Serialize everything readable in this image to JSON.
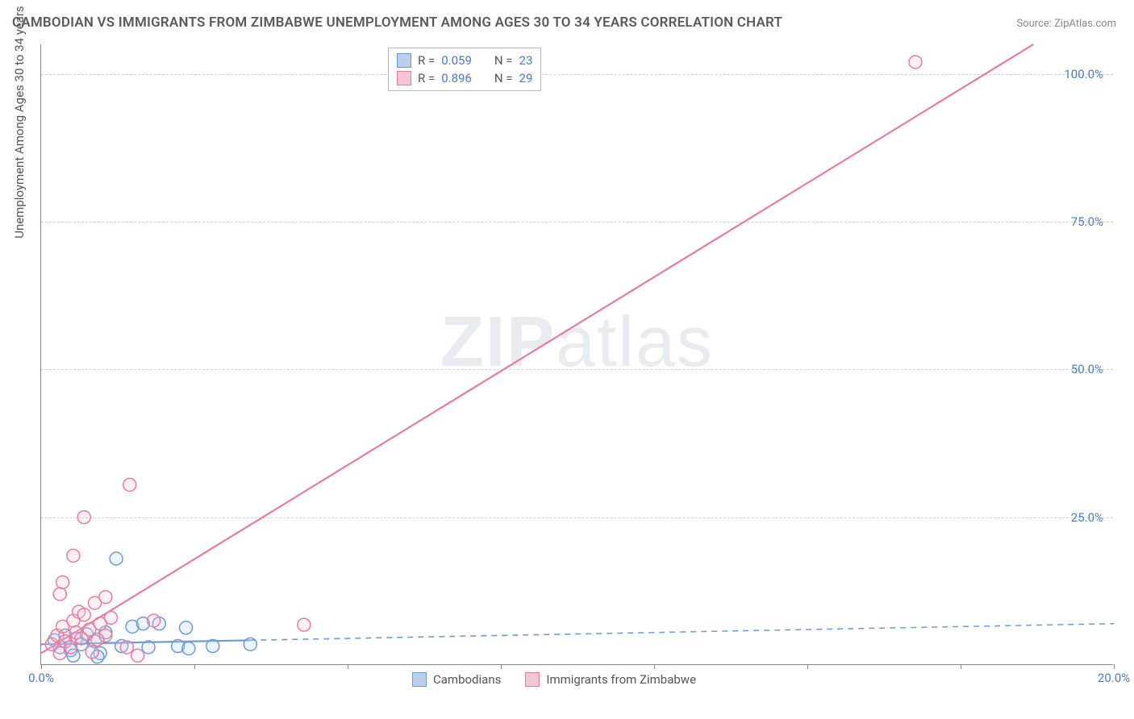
{
  "title": "CAMBODIAN VS IMMIGRANTS FROM ZIMBABWE UNEMPLOYMENT AMONG AGES 30 TO 34 YEARS CORRELATION CHART",
  "source": "Source: ZipAtlas.com",
  "y_axis_title": "Unemployment Among Ages 30 to 34 years",
  "watermark": {
    "bold": "ZIP",
    "rest": "atlas"
  },
  "chart": {
    "type": "scatter",
    "background_color": "#ffffff",
    "grid_color": "#d0d0d0",
    "axis_color": "#888888",
    "tick_label_color": "#4a7bc8",
    "tick_fontsize": 15,
    "title_fontsize": 17,
    "xlim": [
      0,
      20
    ],
    "ylim": [
      0,
      105
    ],
    "x_ticks": [
      0,
      2.86,
      5.71,
      8.57,
      11.43,
      14.29,
      17.14,
      20
    ],
    "x_tick_labels": [
      "0.0%",
      "",
      "",
      "",
      "",
      "",
      "",
      "20.0%"
    ],
    "y_ticks": [
      25,
      50,
      75,
      100
    ],
    "y_tick_labels": [
      "25.0%",
      "50.0%",
      "75.0%",
      "100.0%"
    ],
    "marker_radius": 8,
    "marker_stroke_width": 1.5,
    "marker_fill_opacity": 0.25,
    "series": [
      {
        "name": "Cambodians",
        "color": "#6b9bd8",
        "fill": "#b8d0ec",
        "R": "0.059",
        "N": "23",
        "trend": {
          "x1": 0,
          "y1": 3.5,
          "x2": 20,
          "y2": 7.0,
          "solid_until_x": 3.9,
          "line_width": 2.2
        },
        "points": [
          [
            0.25,
            4.2
          ],
          [
            0.35,
            3.0
          ],
          [
            0.45,
            5.0
          ],
          [
            0.55,
            2.5
          ],
          [
            0.65,
            4.5
          ],
          [
            0.75,
            3.5
          ],
          [
            0.85,
            5.2
          ],
          [
            0.6,
            1.6
          ],
          [
            1.0,
            4.0
          ],
          [
            1.1,
            2.0
          ],
          [
            1.2,
            5.5
          ],
          [
            1.4,
            18.0
          ],
          [
            1.5,
            3.2
          ],
          [
            1.7,
            6.5
          ],
          [
            1.9,
            7.0
          ],
          [
            2.0,
            3.0
          ],
          [
            2.2,
            7.0
          ],
          [
            2.55,
            3.2
          ],
          [
            2.75,
            2.8
          ],
          [
            2.7,
            6.3
          ],
          [
            3.2,
            3.2
          ],
          [
            3.9,
            3.5
          ],
          [
            1.05,
            1.4
          ]
        ]
      },
      {
        "name": "Immigrants from Zimbabwe",
        "color": "#e87ca0",
        "fill": "#f5c5d5",
        "R": "0.896",
        "N": "29",
        "trend": {
          "x1": 0,
          "y1": 2.0,
          "x2": 18.5,
          "y2": 105,
          "solid_until_x": 18.5,
          "line_width": 2.2
        },
        "points": [
          [
            0.2,
            3.5
          ],
          [
            0.3,
            5.0
          ],
          [
            0.35,
            2.0
          ],
          [
            0.4,
            6.5
          ],
          [
            0.45,
            4.0
          ],
          [
            0.35,
            12.0
          ],
          [
            0.4,
            14.0
          ],
          [
            0.55,
            3.0
          ],
          [
            0.6,
            7.5
          ],
          [
            0.65,
            5.5
          ],
          [
            0.7,
            9.0
          ],
          [
            0.75,
            4.5
          ],
          [
            0.8,
            8.5
          ],
          [
            0.6,
            18.5
          ],
          [
            0.9,
            6.0
          ],
          [
            0.8,
            25.0
          ],
          [
            1.0,
            10.5
          ],
          [
            1.1,
            7.0
          ],
          [
            1.2,
            5.0
          ],
          [
            1.2,
            11.5
          ],
          [
            1.3,
            8.0
          ],
          [
            1.65,
            30.5
          ],
          [
            0.95,
            2.2
          ],
          [
            1.6,
            3.0
          ],
          [
            1.8,
            1.6
          ],
          [
            2.1,
            7.5
          ],
          [
            4.9,
            6.8
          ],
          [
            1.05,
            4.3
          ],
          [
            16.3,
            102
          ]
        ]
      }
    ]
  },
  "legend_top": {
    "r_label": "R =",
    "n_label": "N ="
  },
  "legend_bottom": [
    {
      "label": "Cambodians",
      "color": "#6b9bd8",
      "fill": "#b8d0ec"
    },
    {
      "label": "Immigrants from Zimbabwe",
      "color": "#e87ca0",
      "fill": "#f5c5d5"
    }
  ]
}
